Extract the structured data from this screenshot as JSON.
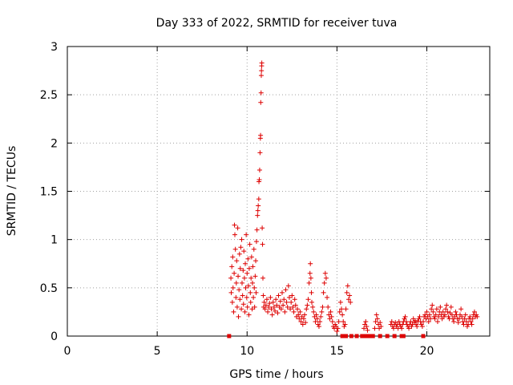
{
  "chart_data": {
    "type": "scatter",
    "title": "Day 333 of 2022, SRMTID for receiver tuva",
    "xlabel": "GPS time / hours",
    "ylabel": "SRMTID / TECUs",
    "xlim": [
      0,
      23.5
    ],
    "ylim": [
      0,
      3
    ],
    "xticks": [
      0,
      5,
      10,
      15,
      20
    ],
    "xtick_labels": [
      "0",
      "5",
      "10",
      "15",
      "20"
    ],
    "yticks": [
      0,
      0.5,
      1,
      1.5,
      2,
      2.5,
      3
    ],
    "ytick_labels": [
      "0",
      "0.5",
      "1",
      "1.5",
      "2",
      "2.5",
      "3"
    ],
    "grid": true,
    "marker": "+",
    "color": "#dd0000",
    "series": [
      {
        "name": "SRMTID",
        "points": [
          [
            9.0,
            0.0
          ],
          [
            9.1,
            0.6
          ],
          [
            9.12,
            0.45
          ],
          [
            9.15,
            0.72
          ],
          [
            9.18,
            0.35
          ],
          [
            9.2,
            0.82
          ],
          [
            9.22,
            0.5
          ],
          [
            9.25,
            0.25
          ],
          [
            9.28,
            0.65
          ],
          [
            9.3,
            1.15
          ],
          [
            9.32,
            1.05
          ],
          [
            9.35,
            0.9
          ],
          [
            9.38,
            0.4
          ],
          [
            9.4,
            0.55
          ],
          [
            9.42,
            0.78
          ],
          [
            9.45,
            0.3
          ],
          [
            9.48,
            1.12
          ],
          [
            9.5,
            0.62
          ],
          [
            9.52,
            0.2
          ],
          [
            9.55,
            0.48
          ],
          [
            9.58,
            0.85
          ],
          [
            9.6,
            0.38
          ],
          [
            9.62,
            0.7
          ],
          [
            9.65,
            0.92
          ],
          [
            9.68,
            0.28
          ],
          [
            9.7,
            1.0
          ],
          [
            9.72,
            0.55
          ],
          [
            9.75,
            0.42
          ],
          [
            9.78,
            0.68
          ],
          [
            9.8,
            0.33
          ],
          [
            9.82,
            0.88
          ],
          [
            9.85,
            0.6
          ],
          [
            9.88,
            0.25
          ],
          [
            9.9,
            0.75
          ],
          [
            9.92,
            0.5
          ],
          [
            9.95,
            1.05
          ],
          [
            9.98,
            0.4
          ],
          [
            10.0,
            0.65
          ],
          [
            10.02,
            0.3
          ],
          [
            10.05,
            0.8
          ],
          [
            10.08,
            0.52
          ],
          [
            10.1,
            0.22
          ],
          [
            10.12,
            0.7
          ],
          [
            10.15,
            0.95
          ],
          [
            10.18,
            0.45
          ],
          [
            10.2,
            0.35
          ],
          [
            10.22,
            0.6
          ],
          [
            10.25,
            0.82
          ],
          [
            10.28,
            0.28
          ],
          [
            10.3,
            0.55
          ],
          [
            10.32,
            0.72
          ],
          [
            10.35,
            0.4
          ],
          [
            10.38,
            0.9
          ],
          [
            10.4,
            0.5
          ],
          [
            10.42,
            0.3
          ],
          [
            10.45,
            0.62
          ],
          [
            10.48,
            0.78
          ],
          [
            10.5,
            0.45
          ],
          [
            10.52,
            0.98
          ],
          [
            10.55,
            1.1
          ],
          [
            10.58,
            1.25
          ],
          [
            10.6,
            1.3
          ],
          [
            10.62,
            1.35
          ],
          [
            10.65,
            1.42
          ],
          [
            10.66,
            1.6
          ],
          [
            10.68,
            1.62
          ],
          [
            10.7,
            1.72
          ],
          [
            10.72,
            1.9
          ],
          [
            10.74,
            2.05
          ],
          [
            10.75,
            2.08
          ],
          [
            10.76,
            2.42
          ],
          [
            10.78,
            2.52
          ],
          [
            10.79,
            2.7
          ],
          [
            10.8,
            2.75
          ],
          [
            10.81,
            2.8
          ],
          [
            10.82,
            2.83
          ],
          [
            10.84,
            1.12
          ],
          [
            10.86,
            0.95
          ],
          [
            10.88,
            0.6
          ],
          [
            10.9,
            0.42
          ],
          [
            10.92,
            0.3
          ],
          [
            10.95,
            0.35
          ],
          [
            11.0,
            0.28
          ],
          [
            11.05,
            0.32
          ],
          [
            11.1,
            0.38
          ],
          [
            11.15,
            0.25
          ],
          [
            11.2,
            0.3
          ],
          [
            11.25,
            0.34
          ],
          [
            11.3,
            0.4
          ],
          [
            11.35,
            0.28
          ],
          [
            11.4,
            0.22
          ],
          [
            11.45,
            0.35
          ],
          [
            11.5,
            0.3
          ],
          [
            11.55,
            0.26
          ],
          [
            11.6,
            0.38
          ],
          [
            11.65,
            0.32
          ],
          [
            11.7,
            0.24
          ],
          [
            11.75,
            0.42
          ],
          [
            11.8,
            0.3
          ],
          [
            11.85,
            0.36
          ],
          [
            11.9,
            0.28
          ],
          [
            11.95,
            0.45
          ],
          [
            12.0,
            0.32
          ],
          [
            12.05,
            0.38
          ],
          [
            12.1,
            0.25
          ],
          [
            12.15,
            0.48
          ],
          [
            12.2,
            0.35
          ],
          [
            12.25,
            0.3
          ],
          [
            12.3,
            0.52
          ],
          [
            12.35,
            0.4
          ],
          [
            12.4,
            0.28
          ],
          [
            12.45,
            0.35
          ],
          [
            12.5,
            0.42
          ],
          [
            12.55,
            0.3
          ],
          [
            12.6,
            0.25
          ],
          [
            12.65,
            0.38
          ],
          [
            12.7,
            0.32
          ],
          [
            12.75,
            0.2
          ],
          [
            12.8,
            0.28
          ],
          [
            12.85,
            0.22
          ],
          [
            12.9,
            0.18
          ],
          [
            12.95,
            0.25
          ],
          [
            13.0,
            0.15
          ],
          [
            13.05,
            0.2
          ],
          [
            13.1,
            0.12
          ],
          [
            13.15,
            0.18
          ],
          [
            13.2,
            0.22
          ],
          [
            13.25,
            0.14
          ],
          [
            13.3,
            0.28
          ],
          [
            13.35,
            0.32
          ],
          [
            13.4,
            0.38
          ],
          [
            13.45,
            0.55
          ],
          [
            13.5,
            0.65
          ],
          [
            13.52,
            0.75
          ],
          [
            13.55,
            0.6
          ],
          [
            13.58,
            0.45
          ],
          [
            13.6,
            0.35
          ],
          [
            13.65,
            0.3
          ],
          [
            13.7,
            0.25
          ],
          [
            13.75,
            0.2
          ],
          [
            13.8,
            0.15
          ],
          [
            13.85,
            0.22
          ],
          [
            13.9,
            0.18
          ],
          [
            13.95,
            0.12
          ],
          [
            14.0,
            0.1
          ],
          [
            14.05,
            0.15
          ],
          [
            14.1,
            0.2
          ],
          [
            14.15,
            0.25
          ],
          [
            14.2,
            0.3
          ],
          [
            14.25,
            0.45
          ],
          [
            14.3,
            0.55
          ],
          [
            14.35,
            0.65
          ],
          [
            14.4,
            0.6
          ],
          [
            14.45,
            0.4
          ],
          [
            14.5,
            0.3
          ],
          [
            14.55,
            0.22
          ],
          [
            14.6,
            0.18
          ],
          [
            14.65,
            0.25
          ],
          [
            14.7,
            0.2
          ],
          [
            14.75,
            0.15
          ],
          [
            14.8,
            0.1
          ],
          [
            14.85,
            0.08
          ],
          [
            14.9,
            0.12
          ],
          [
            14.95,
            0.1
          ],
          [
            15.0,
            0.05
          ],
          [
            15.05,
            0.08
          ],
          [
            15.1,
            0.15
          ],
          [
            15.15,
            0.25
          ],
          [
            15.2,
            0.35
          ],
          [
            15.25,
            0.28
          ],
          [
            15.3,
            0.22
          ],
          [
            15.35,
            0.15
          ],
          [
            15.4,
            0.1
          ],
          [
            15.45,
            0.12
          ],
          [
            15.5,
            0.28
          ],
          [
            15.55,
            0.45
          ],
          [
            15.6,
            0.52
          ],
          [
            15.65,
            0.38
          ],
          [
            15.7,
            0.42
          ],
          [
            15.75,
            0.35
          ],
          [
            15.3,
            0.0
          ],
          [
            15.5,
            0.0
          ],
          [
            15.8,
            0.0
          ],
          [
            16.1,
            0.0
          ],
          [
            16.4,
            0.0
          ],
          [
            16.5,
            0.0
          ],
          [
            16.6,
            0.0
          ],
          [
            16.8,
            0.0
          ],
          [
            17.0,
            0.0
          ],
          [
            17.4,
            0.0
          ],
          [
            17.8,
            0.0
          ],
          [
            18.2,
            0.0
          ],
          [
            18.6,
            0.0
          ],
          [
            18.7,
            0.0
          ],
          [
            19.8,
            0.0
          ],
          [
            16.5,
            0.08
          ],
          [
            16.55,
            0.12
          ],
          [
            16.6,
            0.15
          ],
          [
            16.65,
            0.1
          ],
          [
            16.7,
            0.06
          ],
          [
            17.1,
            0.08
          ],
          [
            17.15,
            0.15
          ],
          [
            17.2,
            0.22
          ],
          [
            17.25,
            0.18
          ],
          [
            17.3,
            0.12
          ],
          [
            17.35,
            0.08
          ],
          [
            17.4,
            0.14
          ],
          [
            17.45,
            0.1
          ],
          [
            18.0,
            0.12
          ],
          [
            18.05,
            0.15
          ],
          [
            18.1,
            0.1
          ],
          [
            18.15,
            0.08
          ],
          [
            18.2,
            0.12
          ],
          [
            18.25,
            0.14
          ],
          [
            18.3,
            0.1
          ],
          [
            18.35,
            0.12
          ],
          [
            18.4,
            0.08
          ],
          [
            18.45,
            0.15
          ],
          [
            18.5,
            0.12
          ],
          [
            18.55,
            0.1
          ],
          [
            18.6,
            0.08
          ],
          [
            18.65,
            0.12
          ],
          [
            18.7,
            0.15
          ],
          [
            18.75,
            0.18
          ],
          [
            18.8,
            0.2
          ],
          [
            18.85,
            0.15
          ],
          [
            18.9,
            0.12
          ],
          [
            18.95,
            0.1
          ],
          [
            19.0,
            0.08
          ],
          [
            19.05,
            0.12
          ],
          [
            19.1,
            0.15
          ],
          [
            19.15,
            0.1
          ],
          [
            19.2,
            0.12
          ],
          [
            19.25,
            0.18
          ],
          [
            19.3,
            0.14
          ],
          [
            19.35,
            0.16
          ],
          [
            19.4,
            0.12
          ],
          [
            19.45,
            0.1
          ],
          [
            19.5,
            0.15
          ],
          [
            19.55,
            0.18
          ],
          [
            19.6,
            0.2
          ],
          [
            19.65,
            0.15
          ],
          [
            19.7,
            0.12
          ],
          [
            19.75,
            0.1
          ],
          [
            19.8,
            0.15
          ],
          [
            19.85,
            0.2
          ],
          [
            19.9,
            0.22
          ],
          [
            19.95,
            0.18
          ],
          [
            20.0,
            0.25
          ],
          [
            20.05,
            0.2
          ],
          [
            20.1,
            0.15
          ],
          [
            20.15,
            0.22
          ],
          [
            20.2,
            0.18
          ],
          [
            20.25,
            0.28
          ],
          [
            20.3,
            0.32
          ],
          [
            20.35,
            0.25
          ],
          [
            20.4,
            0.2
          ],
          [
            20.45,
            0.18
          ],
          [
            20.5,
            0.22
          ],
          [
            20.55,
            0.28
          ],
          [
            20.6,
            0.15
          ],
          [
            20.65,
            0.2
          ],
          [
            20.7,
            0.25
          ],
          [
            20.75,
            0.3
          ],
          [
            20.8,
            0.22
          ],
          [
            20.85,
            0.18
          ],
          [
            20.9,
            0.25
          ],
          [
            20.95,
            0.2
          ],
          [
            21.0,
            0.22
          ],
          [
            21.05,
            0.28
          ],
          [
            21.1,
            0.32
          ],
          [
            21.15,
            0.25
          ],
          [
            21.2,
            0.2
          ],
          [
            21.25,
            0.18
          ],
          [
            21.3,
            0.24
          ],
          [
            21.35,
            0.3
          ],
          [
            21.4,
            0.22
          ],
          [
            21.45,
            0.18
          ],
          [
            21.5,
            0.15
          ],
          [
            21.55,
            0.2
          ],
          [
            21.6,
            0.25
          ],
          [
            21.65,
            0.22
          ],
          [
            21.7,
            0.18
          ],
          [
            21.75,
            0.14
          ],
          [
            21.8,
            0.18
          ],
          [
            21.85,
            0.22
          ],
          [
            21.9,
            0.28
          ],
          [
            21.95,
            0.2
          ],
          [
            22.0,
            0.15
          ],
          [
            22.05,
            0.12
          ],
          [
            22.1,
            0.18
          ],
          [
            22.15,
            0.22
          ],
          [
            22.2,
            0.15
          ],
          [
            22.25,
            0.1
          ],
          [
            22.3,
            0.12
          ],
          [
            22.35,
            0.18
          ],
          [
            22.4,
            0.2
          ],
          [
            22.45,
            0.15
          ],
          [
            22.5,
            0.12
          ],
          [
            22.55,
            0.18
          ],
          [
            22.6,
            0.22
          ],
          [
            22.65,
            0.25
          ],
          [
            22.7,
            0.2
          ],
          [
            22.75,
            0.22
          ],
          [
            22.8,
            0.2
          ]
        ]
      }
    ]
  }
}
